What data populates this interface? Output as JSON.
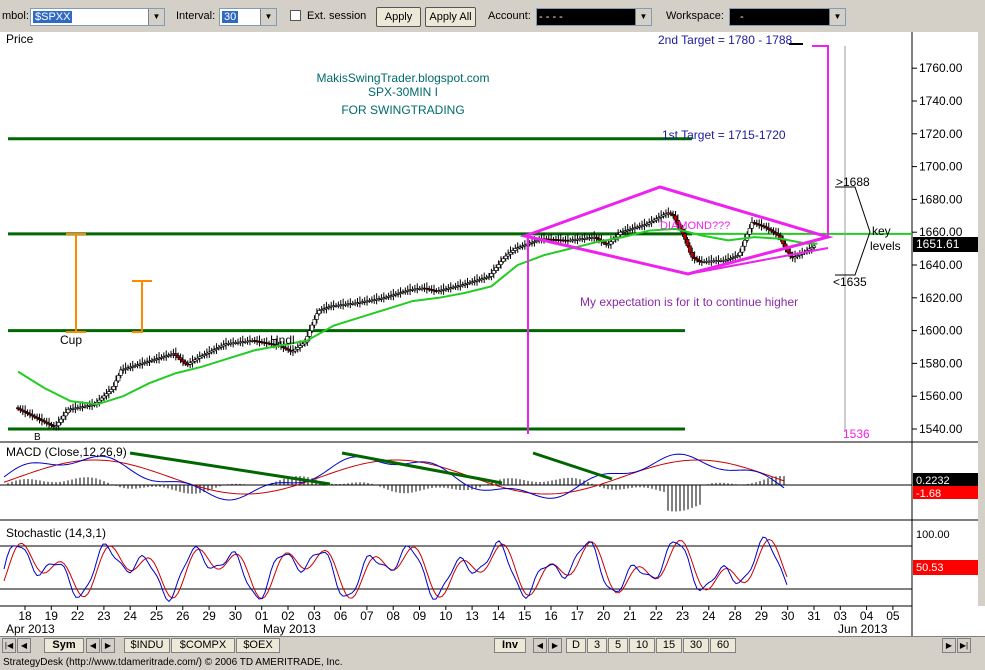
{
  "toolbar": {
    "symbol_label": "mbol:",
    "symbol_value": "$SPXX",
    "interval_label": "Interval:",
    "interval_value": "30",
    "ext_session_label": "Ext. session",
    "apply_label": "Apply",
    "apply_all_label": "Apply All",
    "account_label": "Account:",
    "account_value": "-    -    -    -",
    "workspace_label": "Workspace:",
    "workspace_value": "-"
  },
  "chart_data": [
    {
      "type": "candlestick",
      "panel": "price",
      "title": "Price",
      "ylim": [
        1530,
        1775
      ],
      "yticks": [
        1540,
        1560,
        1580,
        1600,
        1620,
        1640,
        1660,
        1680,
        1700,
        1720,
        1740,
        1760
      ],
      "last_price": "1651.61",
      "x_labels": [
        "18",
        "19",
        "22",
        "23",
        "24",
        "25",
        "26",
        "29",
        "30",
        "01",
        "02",
        "03",
        "06",
        "07",
        "08",
        "09",
        "10",
        "13",
        "14",
        "15",
        "16",
        "17",
        "20",
        "21",
        "22",
        "23",
        "24",
        "28",
        "29",
        "30",
        "31",
        "03",
        "04",
        "05"
      ],
      "x_month_labels": [
        "Apr 2013",
        "May 2013",
        "Jun 2013"
      ],
      "path": [
        [
          0,
          1553
        ],
        [
          1,
          1545
        ],
        [
          1.5,
          1541
        ],
        [
          2,
          1552
        ],
        [
          3,
          1555
        ],
        [
          3.7,
          1565
        ],
        [
          4,
          1576
        ],
        [
          5,
          1581
        ],
        [
          6,
          1586
        ],
        [
          6.5,
          1579
        ],
        [
          7,
          1584
        ],
        [
          8,
          1592
        ],
        [
          9,
          1594
        ],
        [
          10,
          1591
        ],
        [
          10.5,
          1587
        ],
        [
          11,
          1593
        ],
        [
          11.5,
          1612
        ],
        [
          12,
          1615
        ],
        [
          13,
          1617
        ],
        [
          14,
          1620
        ],
        [
          15,
          1625
        ],
        [
          15.5,
          1626
        ],
        [
          16,
          1624
        ],
        [
          17,
          1628
        ],
        [
          18,
          1633
        ],
        [
          18.6,
          1645
        ],
        [
          19,
          1650
        ],
        [
          20,
          1656
        ],
        [
          21,
          1655
        ],
        [
          22,
          1657
        ],
        [
          22.5,
          1652
        ],
        [
          23,
          1660
        ],
        [
          24,
          1665
        ],
        [
          24.8,
          1672
        ],
        [
          25,
          1670
        ],
        [
          25.4,
          1658
        ],
        [
          25.7,
          1645
        ],
        [
          26,
          1642
        ],
        [
          27,
          1643
        ],
        [
          27.5,
          1646
        ],
        [
          28,
          1666
        ],
        [
          28.5,
          1663
        ],
        [
          29,
          1658
        ],
        [
          29.5,
          1644
        ],
        [
          30,
          1648
        ],
        [
          30.4,
          1652
        ]
      ],
      "ma_path": [
        [
          0,
          1575
        ],
        [
          1,
          1565
        ],
        [
          2,
          1557
        ],
        [
          3,
          1555
        ],
        [
          4,
          1560
        ],
        [
          5,
          1568
        ],
        [
          6,
          1574
        ],
        [
          7,
          1578
        ],
        [
          8,
          1583
        ],
        [
          9,
          1588
        ],
        [
          10,
          1591
        ],
        [
          11,
          1594
        ],
        [
          12,
          1603
        ],
        [
          13,
          1608
        ],
        [
          14,
          1613
        ],
        [
          15,
          1618
        ],
        [
          16,
          1620
        ],
        [
          17,
          1623
        ],
        [
          18,
          1627
        ],
        [
          19,
          1640
        ],
        [
          20,
          1646
        ],
        [
          21,
          1650
        ],
        [
          22,
          1654
        ],
        [
          23,
          1657
        ],
        [
          24,
          1661
        ],
        [
          25,
          1662
        ],
        [
          26,
          1658
        ],
        [
          27,
          1655
        ],
        [
          28,
          1657
        ],
        [
          29,
          1656
        ],
        [
          30,
          1653
        ],
        [
          30.4,
          1653
        ]
      ],
      "hlines": [
        1717,
        1659,
        1600,
        1540
      ],
      "annotations": [
        "MakisSwingTrader.blogspot.com",
        "SPX-30MIN I",
        "FOR SWINGTRADING",
        "1st Target = 1715-1720",
        "2nd Target = 1780 - 1788",
        "DIAMOND???",
        "My expectation is for it to continue higher",
        ">1688",
        "<1635",
        "key",
        "levels",
        "1536",
        "Cup",
        "Hndl",
        "B"
      ]
    },
    {
      "type": "line",
      "panel": "macd",
      "title": "MACD (Close,12,26,9)",
      "last_values": [
        "0.2232",
        "-1.68"
      ]
    },
    {
      "type": "line",
      "panel": "stochastic",
      "title": "Stochastic (14,3,1)",
      "yticks": [
        100,
        50,
        0
      ],
      "top_tick": "100.00",
      "last_value": "50.53"
    }
  ],
  "bottom": {
    "sym_tab": "Sym",
    "sym_tabs": [
      "$INDU",
      "$COMPX",
      "$OEX"
    ],
    "inv_tab": "Inv",
    "interval_tabs": [
      "D",
      "3",
      "5",
      "10",
      "15",
      "30",
      "60"
    ]
  },
  "statusbar": {
    "text": "StrategyDesk (http://www.tdameritrade.com/) © 2006 TD AMERITRADE, Inc."
  },
  "colors": {
    "bull": "#ffffff",
    "bear": "#c00000",
    "ma": "#22cc22",
    "levels": "#006600",
    "diamond": "#ee22ee",
    "annotation_blue": "#1a1a9c",
    "annotation_teal": "#006b6b",
    "macd_line": "#0000cc",
    "signal_line": "#cc0000",
    "stoch_k": "#0000cc",
    "stoch_d": "#cc0000"
  }
}
